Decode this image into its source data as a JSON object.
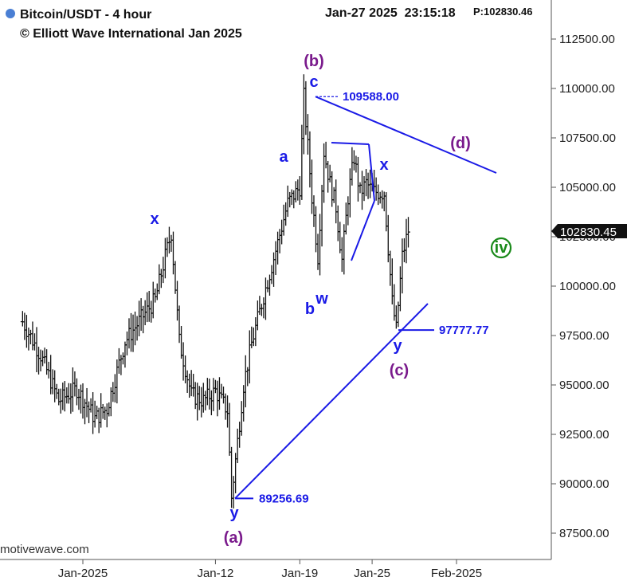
{
  "header": {
    "title": "Bitcoin/USDT - 4 hour",
    "copyright": "© Elliott Wave International Jan 2025",
    "timestamp": "Jan-27 2025  23:15:18",
    "price_readout": "P:102830.46",
    "dot_color": "#4a7fd4"
  },
  "watermark": "motivewave.com",
  "chart_data": {
    "type": "bar",
    "style": "ohlc",
    "ylim": [
      86500,
      114200
    ],
    "y_ticks": [
      87500,
      90000,
      92500,
      95000,
      97500,
      100000,
      102500,
      105000,
      107500,
      110000,
      112500
    ],
    "y_tick_labels": [
      "87500.00",
      "90000.00",
      "92500.00",
      "95000.00",
      "97500.00",
      "100000.00",
      "102500.00",
      "105000.00",
      "107500.00",
      "110000.00",
      "112500.00"
    ],
    "x_range": [
      "2024-12-27",
      "2025-02-06"
    ],
    "x_ticks": [
      {
        "date": "2025-01-01",
        "label": "Jan-2025"
      },
      {
        "date": "2025-01-12",
        "label": "Jan-12"
      },
      {
        "date": "2025-01-19",
        "label": "Jan-19"
      },
      {
        "date": "2025-01-25",
        "label": "Jan-25"
      },
      {
        "date": "2025-02-01",
        "label": "Feb-2025"
      }
    ],
    "last_price": "102830.45",
    "bar_color": "#111111",
    "wave_color_blue": "#1a1ae6",
    "wave_color_purple": "#7a1a8c",
    "wave_color_green": "#1a8a1a",
    "price_series": {
      "x": [
        "2024-12-27 00:00",
        "2024-12-28 12:00",
        "2024-12-30 00:00",
        "2024-12-31 12:00",
        "2025-01-02 00:00",
        "2025-01-03 00:00",
        "2025-01-04 12:00",
        "2025-01-06 00:00",
        "2025-01-07 00:00",
        "2025-01-07 20:00",
        "2025-01-08 08:00",
        "2025-01-09 00:00",
        "2025-01-10 00:00",
        "2025-01-11 00:00",
        "2025-01-12 00:00",
        "2025-01-13 00:00",
        "2025-01-13 08:00",
        "2025-01-14 08:00",
        "2025-01-15 00:00",
        "2025-01-16 00:00",
        "2025-01-17 00:00",
        "2025-01-18 00:00",
        "2025-01-19 00:00",
        "2025-01-19 08:00",
        "2025-01-20 00:00",
        "2025-01-20 12:00",
        "2025-01-21 00:00",
        "2025-01-21 12:00",
        "2025-01-22 00:00",
        "2025-01-22 12:00",
        "2025-01-23 00:00",
        "2025-01-23 12:00",
        "2025-01-24 00:00",
        "2025-01-24 12:00",
        "2025-01-25 00:00",
        "2025-01-26 00:00",
        "2025-01-26 16:00",
        "2025-01-27 00:00",
        "2025-01-27 12:00",
        "2025-01-28 00:00"
      ],
      "close": [
        98200,
        96500,
        94200,
        94800,
        93300,
        93800,
        97200,
        98500,
        99300,
        101500,
        102700,
        97200,
        94500,
        94200,
        94700,
        93700,
        89300,
        95000,
        97100,
        99500,
        101800,
        104200,
        105000,
        109588,
        104500,
        101500,
        106800,
        105200,
        104000,
        101300,
        104500,
        106500,
        104700,
        105200,
        104800,
        104700,
        99200,
        97800,
        101500,
        102830
      ]
    }
  },
  "annotations": {
    "wave_labels": [
      {
        "text": "x",
        "color": "blue"
      },
      {
        "text": "y",
        "color": "blue"
      },
      {
        "text": "(a)",
        "color": "purple"
      },
      {
        "text": "a",
        "color": "blue"
      },
      {
        "text": "(b)",
        "color": "purple"
      },
      {
        "text": "c",
        "color": "blue"
      },
      {
        "text": "b",
        "color": "blue"
      },
      {
        "text": "w",
        "color": "blue"
      },
      {
        "text": "x",
        "color": "blue"
      },
      {
        "text": "y",
        "color": "blue"
      },
      {
        "text": "(c)",
        "color": "purple"
      },
      {
        "text": "(d)",
        "color": "purple"
      },
      {
        "text": "iv",
        "color": "green"
      }
    ],
    "price_labels": [
      "109588.00",
      "97777.77",
      "89256.69"
    ]
  }
}
